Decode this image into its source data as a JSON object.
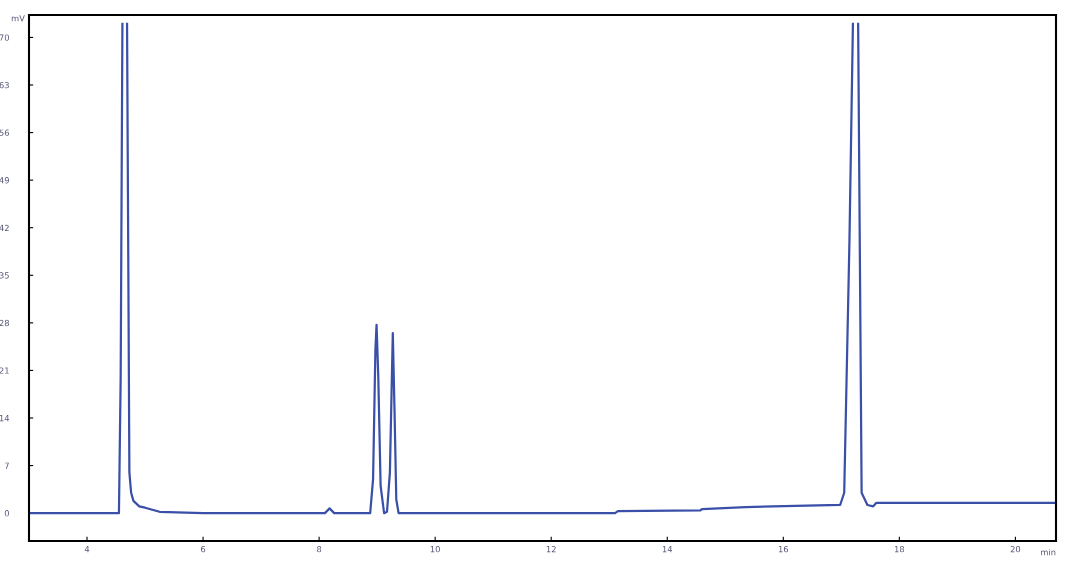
{
  "chart_data": {
    "type": "line",
    "xlabel": "min",
    "ylabel": "mV",
    "xlim": [
      3.0,
      20.7
    ],
    "xticks": [
      4,
      6,
      8,
      10,
      12,
      14,
      16,
      18,
      20
    ],
    "ylim": [
      -4.1,
      73.3
    ],
    "yticks": [
      0,
      7,
      14,
      21,
      28,
      35,
      42,
      49,
      56,
      63,
      70
    ],
    "grid": false,
    "marker": "none",
    "line_style": "solid",
    "series": [
      {
        "color": "#3a4fa8",
        "x": [
          3.0,
          4.55,
          4.58,
          4.61,
          4.65,
          4.69,
          4.73,
          4.76,
          4.8,
          4.9,
          5.0,
          5.25,
          6.0,
          8.1,
          8.18,
          8.26,
          8.4,
          8.88,
          8.93,
          8.97,
          8.99,
          9.02,
          9.06,
          9.12,
          9.17,
          9.22,
          9.27,
          9.3,
          9.33,
          9.37,
          10.0,
          13.1,
          13.15,
          14.57,
          14.6,
          15.35,
          16.98,
          17.05,
          17.14,
          17.2,
          17.26,
          17.29,
          17.35,
          17.45,
          17.55,
          17.6,
          20.7
        ],
        "values": [
          0,
          0,
          20,
          72,
          null,
          72,
          6,
          3,
          1.8,
          1,
          0.8,
          0.2,
          0,
          0,
          0.7,
          0,
          0,
          0,
          5,
          24,
          27.7,
          20,
          4,
          0,
          0.2,
          6,
          26.5,
          15,
          2,
          0,
          0,
          0,
          0.3,
          0.4,
          0.6,
          0.9,
          1.2,
          3,
          40,
          72,
          null,
          72,
          3,
          1.2,
          1,
          1.5,
          1.5
        ]
      }
    ]
  }
}
